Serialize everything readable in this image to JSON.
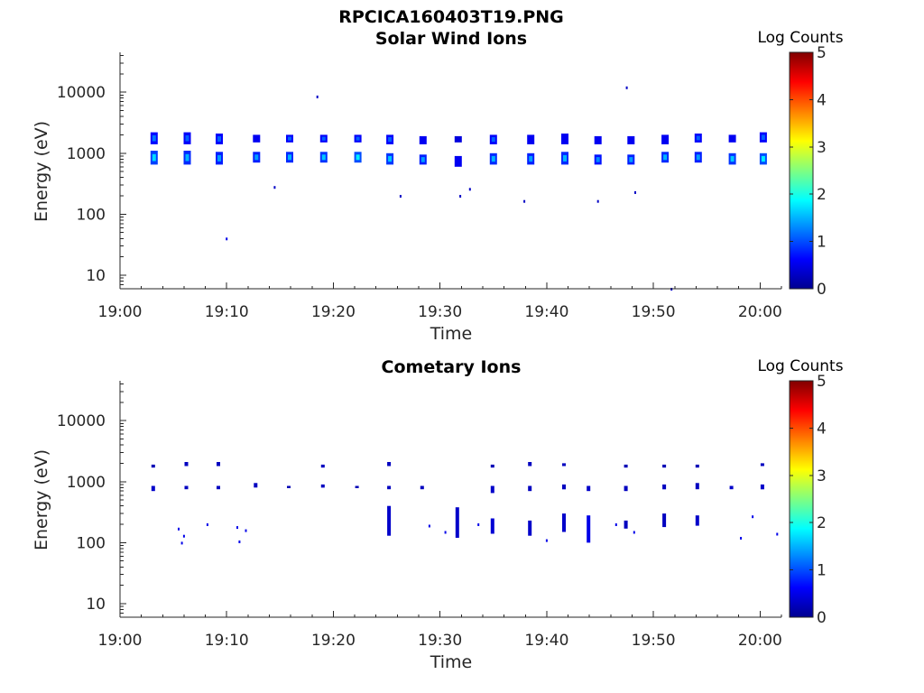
{
  "figure_title": "RPCICA160403T19.PNG",
  "colorbar_title": "Log Counts",
  "colorbar_ticks": [
    "0",
    "1",
    "2",
    "3",
    "4",
    "5"
  ],
  "colorbar_range": [
    0,
    5
  ],
  "colormap": [
    "#00008f",
    "#0000ff",
    "#0080ff",
    "#00ffff",
    "#80ff80",
    "#ffff00",
    "#ff8000",
    "#ff0000",
    "#800000"
  ],
  "chart_data": [
    {
      "type": "heatmap",
      "title": "Solar Wind Ions",
      "xlabel": "Time",
      "ylabel": "Energy (eV)",
      "x_ticks": [
        "19:00",
        "19:10",
        "19:20",
        "19:30",
        "19:40",
        "19:50",
        "20:00"
      ],
      "y_ticks": [
        "10",
        "100",
        "1000",
        "10000"
      ],
      "y_scale": "log",
      "ylim": [
        6,
        45000
      ],
      "xlim_minutes": [
        0,
        62
      ],
      "bursts": [
        {
          "t": 3.2,
          "energy_bands": [
            [
              1400,
              2200,
              1.2
            ],
            [
              650,
              1100,
              1.7
            ]
          ]
        },
        {
          "t": 6.3,
          "energy_bands": [
            [
              1400,
              2200,
              1.1
            ],
            [
              650,
              1100,
              1.5
            ]
          ]
        },
        {
          "t": 9.3,
          "energy_bands": [
            [
              1400,
              2100,
              1.1
            ],
            [
              650,
              1050,
              1.4
            ]
          ]
        },
        {
          "t": 12.8,
          "energy_bands": [
            [
              1500,
              2000,
              1.0
            ],
            [
              700,
              1050,
              1.4
            ]
          ]
        },
        {
          "t": 15.9,
          "energy_bands": [
            [
              1500,
              2000,
              1.1
            ],
            [
              700,
              1050,
              1.5
            ]
          ]
        },
        {
          "t": 19.1,
          "energy_bands": [
            [
              1500,
              2000,
              1.1
            ],
            [
              700,
              1050,
              1.6
            ]
          ]
        },
        {
          "t": 22.3,
          "energy_bands": [
            [
              1500,
              2000,
              1.1
            ],
            [
              700,
              1050,
              1.8
            ]
          ]
        },
        {
          "t": 25.3,
          "energy_bands": [
            [
              1400,
              2000,
              1.1
            ],
            [
              650,
              1000,
              1.6
            ]
          ]
        },
        {
          "t": 28.4,
          "energy_bands": [
            [
              1400,
              1900,
              1.0
            ],
            [
              650,
              950,
              1.4
            ]
          ]
        },
        {
          "t": 31.7,
          "energy_bands": [
            [
              1500,
              1900,
              0.8
            ],
            [
              600,
              900,
              1.0
            ]
          ]
        },
        {
          "t": 35.0,
          "energy_bands": [
            [
              1400,
              2000,
              1.1
            ],
            [
              650,
              1000,
              1.5
            ]
          ]
        },
        {
          "t": 38.5,
          "energy_bands": [
            [
              1400,
              2000,
              1.0
            ],
            [
              650,
              1000,
              1.4
            ]
          ]
        },
        {
          "t": 41.7,
          "energy_bands": [
            [
              1400,
              2100,
              1.0
            ],
            [
              650,
              1050,
              1.5
            ]
          ]
        },
        {
          "t": 44.8,
          "energy_bands": [
            [
              1400,
              1900,
              1.0
            ],
            [
              650,
              950,
              1.3
            ]
          ]
        },
        {
          "t": 47.9,
          "energy_bands": [
            [
              1400,
              1900,
              1.0
            ],
            [
              650,
              950,
              1.4
            ]
          ]
        },
        {
          "t": 51.1,
          "energy_bands": [
            [
              1400,
              2000,
              1.0
            ],
            [
              700,
              1050,
              1.5
            ]
          ]
        },
        {
          "t": 54.2,
          "energy_bands": [
            [
              1500,
              2100,
              1.1
            ],
            [
              700,
              1050,
              1.4
            ]
          ]
        },
        {
          "t": 57.4,
          "energy_bands": [
            [
              1500,
              2000,
              1.0
            ],
            [
              650,
              1000,
              1.6
            ]
          ]
        },
        {
          "t": 60.3,
          "energy_bands": [
            [
              1500,
              2200,
              1.1
            ],
            [
              650,
              1000,
              1.8
            ]
          ]
        }
      ],
      "isolated_points": [
        {
          "t": 10.0,
          "e": 40,
          "v": 0.5
        },
        {
          "t": 14.5,
          "e": 280,
          "v": 0.3
        },
        {
          "t": 18.5,
          "e": 8500,
          "v": 0.3
        },
        {
          "t": 26.3,
          "e": 200,
          "v": 0.3
        },
        {
          "t": 31.9,
          "e": 200,
          "v": 0.3
        },
        {
          "t": 32.8,
          "e": 260,
          "v": 0.3
        },
        {
          "t": 37.9,
          "e": 165,
          "v": 0.3
        },
        {
          "t": 44.8,
          "e": 165,
          "v": 0.3
        },
        {
          "t": 47.5,
          "e": 12000,
          "v": 0.3
        },
        {
          "t": 48.3,
          "e": 230,
          "v": 0.3
        },
        {
          "t": 51.7,
          "e": 6,
          "v": 0.3
        }
      ]
    },
    {
      "type": "heatmap",
      "title": "Cometary Ions",
      "xlabel": "Time",
      "ylabel": "Energy (eV)",
      "x_ticks": [
        "19:00",
        "19:10",
        "19:20",
        "19:30",
        "19:40",
        "19:50",
        "20:00"
      ],
      "y_ticks": [
        "10",
        "100",
        "1000",
        "10000"
      ],
      "y_scale": "log",
      "ylim": [
        6,
        45000
      ],
      "xlim_minutes": [
        0,
        62
      ],
      "bursts": [
        {
          "t": 3.2,
          "energy_bands": [
            [
              1700,
              1900,
              0.4
            ],
            [
              700,
              850,
              0.6
            ]
          ]
        },
        {
          "t": 6.3,
          "energy_bands": [
            [
              1800,
              2100,
              0.5
            ],
            [
              750,
              850,
              0.5
            ]
          ]
        },
        {
          "t": 9.3,
          "energy_bands": [
            [
              1800,
              2100,
              0.5
            ],
            [
              750,
              850,
              0.5
            ]
          ]
        },
        {
          "t": 12.8,
          "energy_bands": [
            [
              800,
              950,
              0.5
            ]
          ]
        },
        {
          "t": 15.9,
          "energy_bands": [
            [
              780,
              850,
              0.4
            ]
          ]
        },
        {
          "t": 19.1,
          "energy_bands": [
            [
              1700,
              1900,
              0.5
            ],
            [
              800,
              900,
              0.5
            ]
          ]
        },
        {
          "t": 22.3,
          "energy_bands": [
            [
              780,
              850,
              0.4
            ]
          ]
        },
        {
          "t": 25.3,
          "energy_bands": [
            [
              1800,
              2100,
              0.5
            ],
            [
              750,
              850,
              0.5
            ],
            [
              130,
              400,
              0.6
            ]
          ]
        },
        {
          "t": 28.4,
          "energy_bands": [
            [
              750,
              850,
              0.5
            ]
          ]
        },
        {
          "t": 31.7,
          "energy_bands": [
            [
              120,
              380,
              0.6
            ]
          ]
        },
        {
          "t": 35.0,
          "energy_bands": [
            [
              1700,
              1900,
              0.4
            ],
            [
              650,
              850,
              0.6
            ],
            [
              140,
              250,
              0.7
            ]
          ]
        },
        {
          "t": 38.5,
          "energy_bands": [
            [
              1800,
              2100,
              0.5
            ],
            [
              700,
              850,
              0.5
            ],
            [
              130,
              230,
              0.6
            ]
          ]
        },
        {
          "t": 41.7,
          "energy_bands": [
            [
              1800,
              2000,
              0.5
            ],
            [
              750,
              900,
              0.5
            ],
            [
              150,
              300,
              0.6
            ]
          ]
        },
        {
          "t": 44.0,
          "energy_bands": [
            [
              100,
              280,
              0.9
            ],
            [
              700,
              850,
              0.6
            ]
          ]
        },
        {
          "t": 47.5,
          "energy_bands": [
            [
              1700,
              1900,
              0.4
            ],
            [
              700,
              850,
              0.5
            ],
            [
              170,
              230,
              0.5
            ]
          ]
        },
        {
          "t": 51.1,
          "energy_bands": [
            [
              1700,
              1900,
              0.4
            ],
            [
              750,
              900,
              0.5
            ],
            [
              180,
              300,
              0.5
            ]
          ]
        },
        {
          "t": 54.2,
          "energy_bands": [
            [
              1700,
              1900,
              0.4
            ],
            [
              750,
              950,
              0.5
            ],
            [
              190,
              280,
              0.6
            ]
          ]
        },
        {
          "t": 57.4,
          "energy_bands": [
            [
              750,
              850,
              0.6
            ]
          ]
        },
        {
          "t": 60.3,
          "energy_bands": [
            [
              1800,
              2000,
              0.5
            ],
            [
              750,
              900,
              0.6
            ]
          ]
        }
      ],
      "isolated_points": [
        {
          "t": 5.5,
          "e": 170,
          "v": 0.5
        },
        {
          "t": 5.8,
          "e": 100,
          "v": 0.5
        },
        {
          "t": 6.0,
          "e": 130,
          "v": 0.5
        },
        {
          "t": 8.2,
          "e": 200,
          "v": 0.5
        },
        {
          "t": 11.0,
          "e": 180,
          "v": 0.5
        },
        {
          "t": 11.2,
          "e": 105,
          "v": 0.5
        },
        {
          "t": 11.8,
          "e": 160,
          "v": 0.5
        },
        {
          "t": 29.0,
          "e": 190,
          "v": 0.5
        },
        {
          "t": 30.5,
          "e": 150,
          "v": 0.5
        },
        {
          "t": 33.6,
          "e": 200,
          "v": 0.5
        },
        {
          "t": 40.0,
          "e": 110,
          "v": 0.5
        },
        {
          "t": 46.5,
          "e": 200,
          "v": 0.5
        },
        {
          "t": 48.2,
          "e": 150,
          "v": 0.5
        },
        {
          "t": 58.2,
          "e": 120,
          "v": 0.5
        },
        {
          "t": 59.3,
          "e": 270,
          "v": 0.5
        },
        {
          "t": 61.6,
          "e": 140,
          "v": 0.5
        }
      ]
    }
  ]
}
